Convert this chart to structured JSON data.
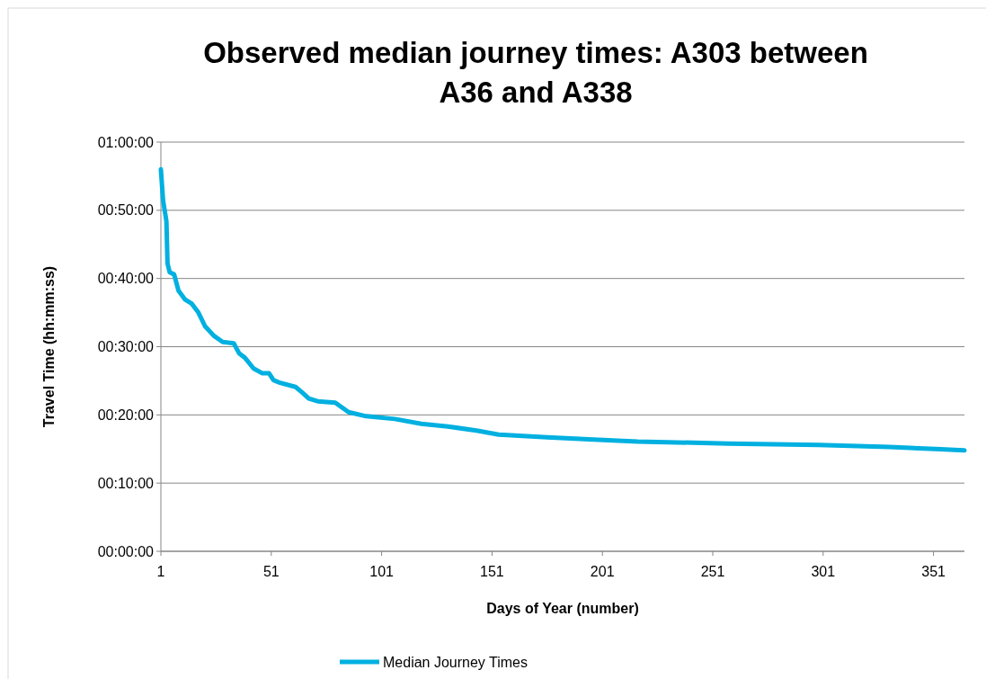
{
  "chart_data": {
    "type": "line",
    "title": "Observed median journey times: A303 between A36 and A338",
    "xlabel": "Days of Year (number)",
    "ylabel": "Travel Time (hh:mm:ss)",
    "xlim": [
      1,
      365
    ],
    "xticks": [
      1,
      51,
      101,
      151,
      201,
      251,
      301,
      351
    ],
    "ylim": [
      0,
      60
    ],
    "yticks": [
      {
        "value": 0,
        "label": "00:00:00"
      },
      {
        "value": 10,
        "label": "00:10:00"
      },
      {
        "value": 20,
        "label": "00:20:00"
      },
      {
        "value": 30,
        "label": "00:30:00"
      },
      {
        "value": 40,
        "label": "00:40:00"
      },
      {
        "value": 50,
        "label": "00:50:00"
      },
      {
        "value": 60,
        "label": "01:00:00"
      }
    ],
    "grid": "y",
    "legend": "bottom",
    "marker": "none",
    "line_style": "solid",
    "series": [
      {
        "name": "Median Journey Times",
        "color": "#00b0e0",
        "x": [
          1,
          2,
          3.5,
          4,
          5,
          7,
          9,
          12,
          15,
          18,
          21,
          25,
          29,
          34,
          36.5,
          39,
          43,
          47,
          50,
          52,
          55,
          62,
          65,
          68,
          72,
          80,
          83,
          86,
          94,
          107,
          119,
          131,
          144,
          154,
          176,
          197,
          217,
          258,
          299,
          331,
          352,
          365
        ],
        "values": [
          56,
          51.4,
          48.4,
          42.2,
          40.9,
          40.6,
          38.2,
          36.9,
          36.3,
          35,
          33,
          31.6,
          30.7,
          30.5,
          29,
          28.4,
          26.8,
          26.1,
          26.1,
          25.1,
          24.7,
          24.1,
          23.3,
          22.4,
          22,
          21.8,
          21.1,
          20.4,
          19.8,
          19.4,
          18.7,
          18.3,
          17.7,
          17.1,
          16.7,
          16.4,
          16.1,
          15.8,
          15.6,
          15.3,
          15,
          14.8
        ]
      }
    ]
  }
}
